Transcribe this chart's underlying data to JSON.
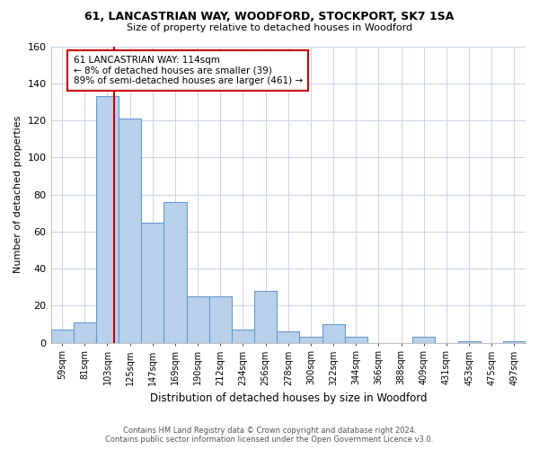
{
  "title1": "61, LANCASTRIAN WAY, WOODFORD, STOCKPORT, SK7 1SA",
  "title2": "Size of property relative to detached houses in Woodford",
  "xlabel": "Distribution of detached houses by size in Woodford",
  "ylabel": "Number of detached properties",
  "bin_labels": [
    "59sqm",
    "81sqm",
    "103sqm",
    "125sqm",
    "147sqm",
    "169sqm",
    "190sqm",
    "212sqm",
    "234sqm",
    "256sqm",
    "278sqm",
    "300sqm",
    "322sqm",
    "344sqm",
    "366sqm",
    "388sqm",
    "409sqm",
    "431sqm",
    "453sqm",
    "475sqm",
    "497sqm"
  ],
  "bar_heights": [
    7,
    11,
    133,
    121,
    65,
    76,
    25,
    25,
    7,
    28,
    6,
    3,
    10,
    3,
    0,
    0,
    3,
    0,
    1,
    0,
    1
  ],
  "bar_color": "#b8d0ea",
  "bar_edge_color": "#6699cc",
  "highlight_bar_index": 2,
  "vline_color": "#cc0000",
  "vline_x": 2.3,
  "ylim": [
    0,
    160
  ],
  "yticks": [
    0,
    20,
    40,
    60,
    80,
    100,
    120,
    140,
    160
  ],
  "annotation_line1": "61 LANCASTRIAN WAY: 114sqm",
  "annotation_line2": "← 8% of detached houses are smaller (39)",
  "annotation_line3": "89% of semi-detached houses are larger (461) →",
  "annotation_box_color": "#ffffff",
  "annotation_box_edge": "#cc0000",
  "footer_line1": "Contains HM Land Registry data © Crown copyright and database right 2024.",
  "footer_line2": "Contains public sector information licensed under the Open Government Licence v3.0.",
  "background_color": "#ffffff",
  "grid_color": "#c8d4e8"
}
